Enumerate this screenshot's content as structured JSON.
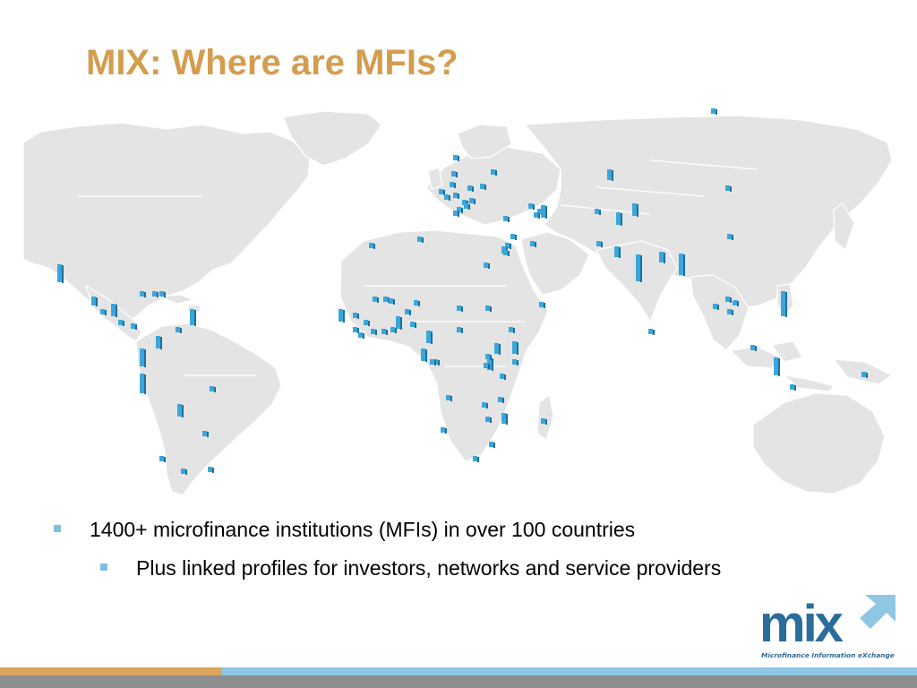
{
  "title": "MIX: Where are MFIs?",
  "bullets": [
    {
      "text": "1400+ microfinance institutions (MFIs) in over 100 countries",
      "level": 1
    },
    {
      "text": "Plus linked profiles for investors, networks and service providers",
      "level": 2
    }
  ],
  "logo": {
    "word": "mix",
    "tagline": "Microfinance Information eXchange"
  },
  "map": {
    "land_color": "#e4e4e4",
    "border_color": "#ffffff",
    "marker_color": "#3aa7dc"
  },
  "colors": {
    "title": "#d39d4f",
    "bullet": "#7ec0df",
    "footer_gold": "#dca55e",
    "footer_blue": "#8fc6e4",
    "footer_gray": "#8e8e8e"
  }
}
